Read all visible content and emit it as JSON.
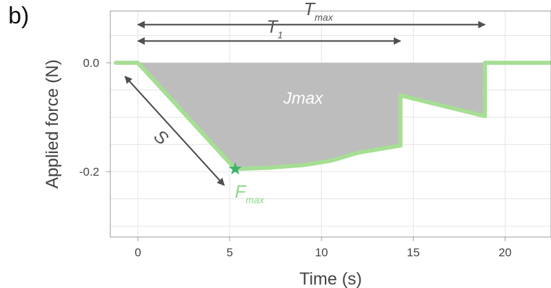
{
  "panel_label": "b)",
  "colors": {
    "force_line": "#a6de94",
    "fill_area": "#bdbdbd",
    "star": "#3db36a",
    "arrow": "#505050",
    "grid": "#e3e3e3",
    "jmax_text": "#ffffff",
    "fmax_text": "#8fd68a"
  },
  "chart_data": {
    "type": "line",
    "title": "",
    "xlabel": "Time (s)",
    "ylabel": "Applied force (N)",
    "xlim": [
      -1.5,
      22.5
    ],
    "ylim": [
      -0.32,
      0.095
    ],
    "x_ticks": [
      0,
      5,
      10,
      15,
      20
    ],
    "x_tick_labels": [
      "0",
      "5",
      "10",
      "15",
      "20"
    ],
    "y_ticks": [
      0.0,
      -0.2
    ],
    "y_tick_labels": [
      "0.0",
      "-0.2"
    ],
    "grid": true,
    "series": [
      {
        "x": [
          -1.2,
          0.0,
          5.3,
          7.0,
          9.0,
          10.5,
          12.0,
          14.3,
          14.3,
          18.9,
          18.9,
          22.5
        ],
        "y": [
          0.0,
          0.0,
          -0.195,
          -0.193,
          -0.188,
          -0.18,
          -0.165,
          -0.152,
          -0.06,
          -0.098,
          0.0,
          0.0
        ]
      }
    ],
    "shaded_region": {
      "x": [
        0.0,
        5.3,
        7.0,
        9.0,
        10.5,
        12.0,
        14.3,
        14.3,
        18.9,
        18.9
      ],
      "y": [
        0.0,
        -0.195,
        -0.193,
        -0.188,
        -0.18,
        -0.165,
        -0.152,
        -0.06,
        -0.098,
        0.0
      ]
    },
    "peak_marker": {
      "x": 5.3,
      "y": -0.195
    },
    "annotations": {
      "tmax": {
        "main": "T",
        "sub": "max",
        "x_start": 0.0,
        "x_end": 18.9,
        "y": 0.07
      },
      "t1": {
        "main": "T",
        "sub": "1",
        "x_start": 0.0,
        "x_end": 14.3,
        "y": 0.04
      },
      "jmax": {
        "label": "Jmax",
        "x": 9.0,
        "y": -0.075
      },
      "s": {
        "label": "S",
        "x_start": -0.7,
        "y_start": -0.025,
        "x_end": 4.7,
        "y_end": -0.225
      },
      "fmax": {
        "main": "F",
        "sub": "max",
        "x": 5.7,
        "y": -0.235
      }
    }
  }
}
